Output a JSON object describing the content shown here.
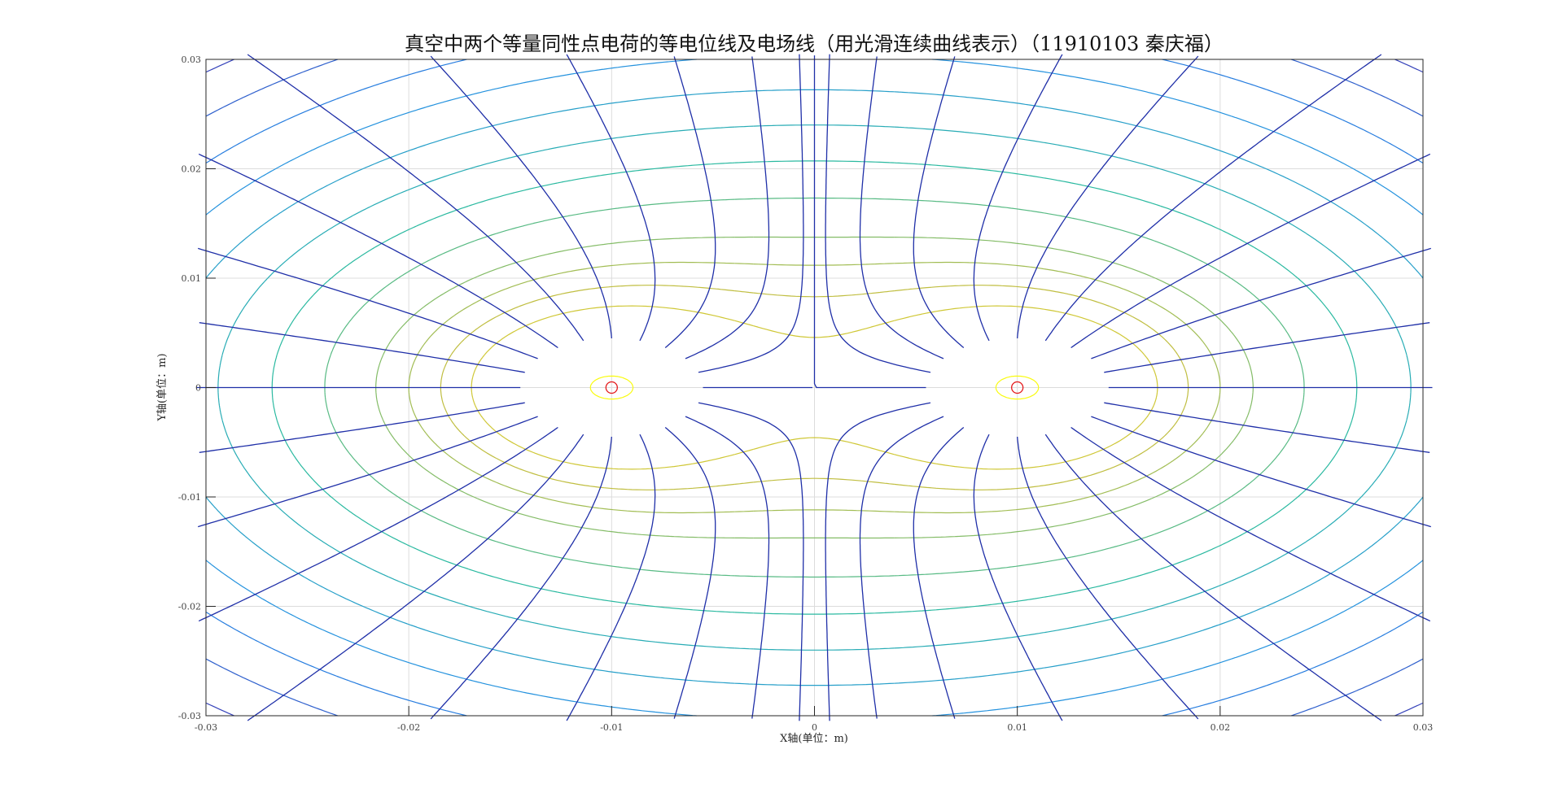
{
  "chart_data": {
    "type": "contour",
    "title": "真空中两个等量同性点电荷的等电位线及电场线（用光滑连续曲线表示）（11910103 秦庆福）",
    "xlabel": "X轴(单位：m)",
    "ylabel": "Y轴(单位：m)",
    "xlim": [
      -0.03,
      0.03
    ],
    "ylim": [
      -0.03,
      0.03
    ],
    "xticks": [
      -0.03,
      -0.02,
      -0.01,
      0,
      0.01,
      0.02,
      0.03
    ],
    "yticks": [
      -0.03,
      -0.02,
      -0.01,
      0,
      0.01,
      0.02,
      0.03
    ],
    "xtick_labels": [
      "-0.03",
      "-0.02",
      "-0.01",
      "0",
      "0.01",
      "0.02",
      "0.03"
    ],
    "ytick_labels": [
      "-0.03",
      "-0.02",
      "-0.01",
      "0",
      "0.01",
      "0.02",
      "0.03"
    ],
    "grid": true,
    "charges": [
      {
        "x": -0.01,
        "y": 0,
        "sign": "+"
      },
      {
        "x": 0.01,
        "y": 0,
        "sign": "+"
      }
    ],
    "equipotential_levels": [
      0.001,
      0.0055,
      0.0065,
      0.0075,
      0.0085,
      0.01,
      0.0115,
      0.013,
      0.0145,
      0.016,
      0.0175,
      0.019,
      0.0205,
      0.022
    ],
    "field_lines": {
      "per_charge": 20,
      "outer_angles_deg": [
        0,
        18,
        36,
        54,
        72,
        90,
        108,
        126,
        144,
        162,
        180,
        198,
        216,
        234,
        252,
        270,
        288,
        306,
        324,
        342
      ],
      "inner_angles_deg": [
        45,
        315
      ]
    },
    "colors": {
      "field_line": "#1f2fa8",
      "charge_marker": "#e41a1c",
      "colormap_low": "#3e26a8",
      "colormap_mid": "#2ab9a0",
      "colormap_high": "#f9fb0e",
      "grid": "#dcdcdc"
    }
  }
}
